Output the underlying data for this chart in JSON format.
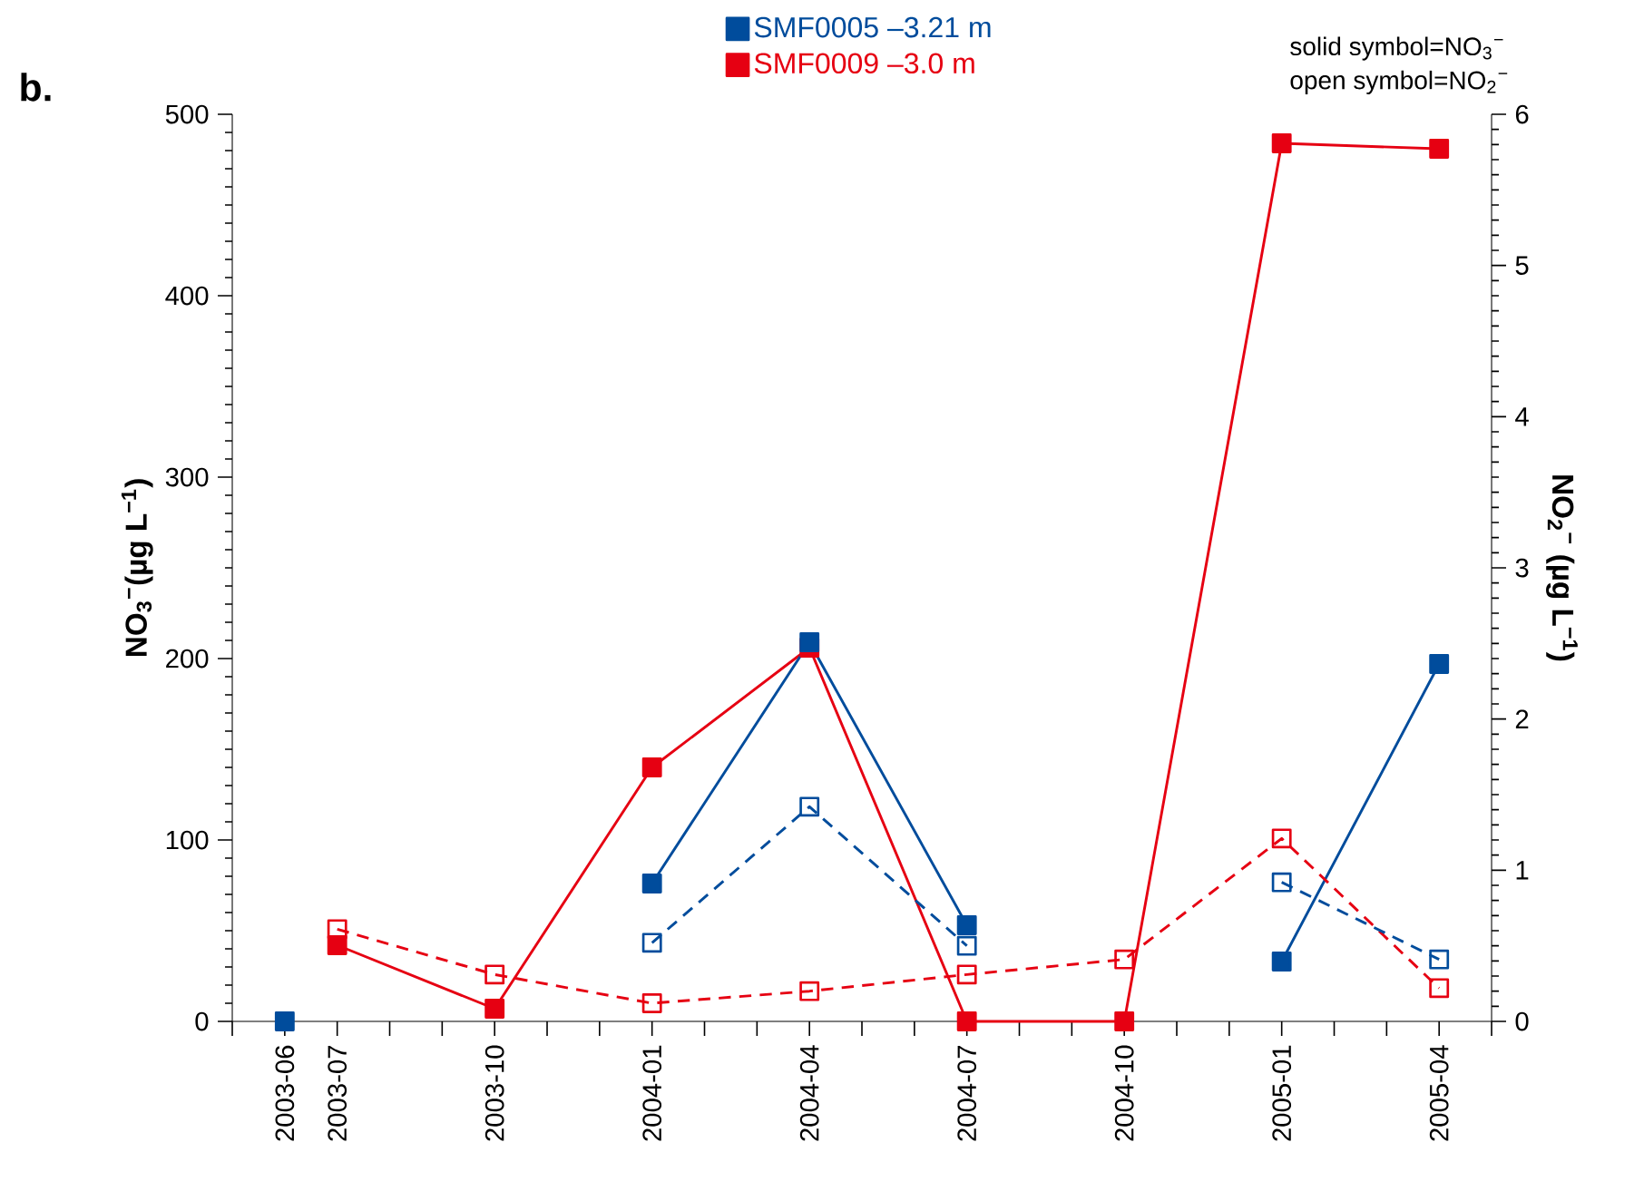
{
  "chart_data": {
    "type": "line",
    "title": "b.",
    "ylabel": "NO$_{3}$$^{−}$(µg L$^{−1}$)",
    "y2label": "NO$_{2}$$^{−}$ (µg L$^{−1}$)",
    "annotations": [
      "solid symbol=NO$_{3}$$^{−}$",
      "open symbol=NO$_{2}$$^{−}$"
    ],
    "x": [
      "2003-06",
      "2003-07",
      "2003-10",
      "2004-01",
      "2004-04",
      "2004-07",
      "2004-10",
      "2005-01",
      "2005-04"
    ],
    "series": [
      {
        "name": "SMF0005 –3.21 m",
        "color": "#004c9c",
        "line_style": "solid",
        "values": [
          0,
          null,
          null,
          76,
          209,
          53,
          null,
          33,
          197
        ]
      },
      {
        "name": "SMF0009 –3.0 m",
        "color": "#e60012",
        "line_style": "solid",
        "values": [
          null,
          42,
          7,
          140,
          206,
          0,
          0,
          484,
          481
        ]
      },
      {
        "color": "#004c9c",
        "axis": "y2",
        "line_style": "dashed",
        "values": [
          null,
          null,
          null,
          0.52,
          1.42,
          0.5,
          null,
          0.92,
          0.41
        ]
      },
      {
        "color": "#e60012",
        "axis": "y2",
        "line_style": "dashed",
        "values": [
          null,
          0.61,
          0.31,
          0.12,
          0.2,
          0.31,
          0.41,
          1.21,
          0.22
        ]
      }
    ],
    "marker": "square",
    "legend": "top",
    "grid": false,
    "xlim": [
      "2003-05",
      "2005-05"
    ],
    "xticks": [
      {
        "value": "2003-05",
        "label": null
      },
      "2003-06",
      "2003-07",
      {
        "value": "2003-08",
        "label": null
      },
      {
        "value": "2003-09",
        "label": null
      },
      "2003-10",
      {
        "value": "2003-11",
        "label": null
      },
      {
        "value": "2003-12",
        "label": null
      },
      "2004-01",
      {
        "value": "2004-02",
        "label": null
      },
      {
        "value": "2004-03",
        "label": null
      },
      "2004-04",
      {
        "value": "2004-05",
        "label": null
      },
      {
        "value": "2004-06",
        "label": null
      },
      "2004-07",
      {
        "value": "2004-08",
        "label": null
      },
      {
        "value": "2004-09",
        "label": null
      },
      "2004-10",
      {
        "value": "2004-11",
        "label": null
      },
      {
        "value": "2004-12",
        "label": null
      },
      "2005-01",
      {
        "value": "2005-02",
        "label": null
      },
      {
        "value": "2005-03",
        "label": null
      },
      "2005-04",
      {
        "value": "2005-05",
        "label": null
      }
    ],
    "ylim": [
      0,
      500
    ],
    "yticks": [
      0,
      100,
      200,
      300,
      400,
      500
    ],
    "y2lim": [
      0,
      6
    ],
    "y2ticks": [
      0,
      1,
      2,
      3,
      4,
      5,
      6
    ]
  }
}
